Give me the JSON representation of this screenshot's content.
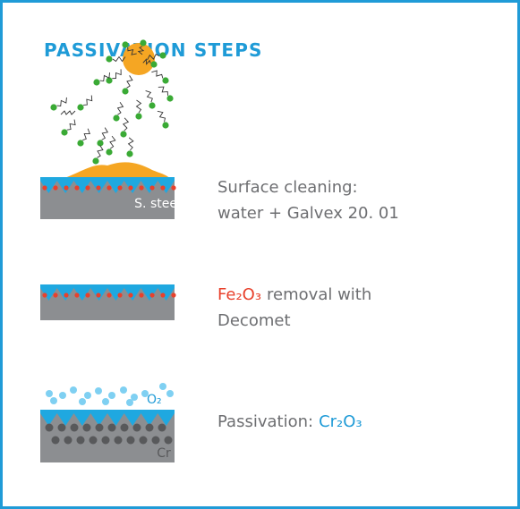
{
  "title": "PASSIVATION STEPS",
  "steps": [
    {
      "label": "S. steel",
      "lines": [
        "Surface cleaning:",
        "water + Galvex 20. 01"
      ]
    },
    {
      "formula": "Fe₂O₃",
      "lines": [
        "removal with",
        "Decomet"
      ]
    },
    {
      "labels": [
        "O₂",
        "Cr"
      ],
      "lines": [
        "Passivation:"
      ],
      "formula": "Cr₂O₃"
    }
  ]
}
